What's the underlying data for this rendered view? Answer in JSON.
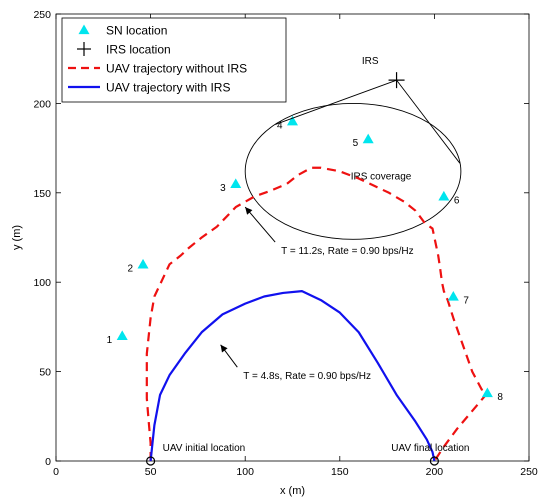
{
  "chart_data": {
    "type": "line",
    "xlabel": "x (m)",
    "ylabel": "y (m)",
    "xlim": [
      0,
      250
    ],
    "ylim": [
      0,
      250
    ],
    "xticks": [
      0,
      50,
      100,
      150,
      200,
      250
    ],
    "yticks": [
      0,
      50,
      100,
      150,
      200,
      250
    ],
    "grid": false,
    "legend_position": "top-left",
    "legend": [
      {
        "label": "SN location",
        "marker": "triangle",
        "color": "#00e5ee"
      },
      {
        "label": "IRS location",
        "marker": "plus",
        "color": "#000000"
      },
      {
        "label": "UAV trajectory without IRS",
        "line": "dashed",
        "color": "#ee1111"
      },
      {
        "label": "UAV trajectory with IRS",
        "line": "solid",
        "color": "#1111ee"
      }
    ],
    "sn_locations": [
      {
        "label": "1",
        "x": 35,
        "y": 70
      },
      {
        "label": "2",
        "x": 46,
        "y": 110
      },
      {
        "label": "3",
        "x": 95,
        "y": 155
      },
      {
        "label": "4",
        "x": 125,
        "y": 190
      },
      {
        "label": "5",
        "x": 165,
        "y": 180
      },
      {
        "label": "6",
        "x": 205,
        "y": 148
      },
      {
        "label": "7",
        "x": 210,
        "y": 92
      },
      {
        "label": "8",
        "x": 228,
        "y": 38
      }
    ],
    "irs_location": {
      "x": 180,
      "y": 213
    },
    "irs_label": "IRS",
    "coverage": {
      "label": "IRS coverage",
      "cx": 157,
      "cy": 162,
      "rx": 57,
      "ry": 38
    },
    "series": [
      {
        "name": "UAV trajectory without IRS",
        "x": [
          50,
          50,
          49,
          48,
          48,
          50,
          52,
          56,
          60,
          66,
          70,
          77,
          85,
          95,
          105,
          113,
          122,
          128,
          135,
          140,
          150,
          160,
          168,
          176,
          184,
          190,
          195,
          199,
          200,
          202,
          203,
          204,
          205,
          207,
          210,
          215,
          220,
          225,
          228,
          220,
          212,
          205,
          200
        ],
        "y": [
          0,
          10,
          22,
          35,
          60,
          80,
          92,
          101,
          110,
          115,
          119,
          125,
          131,
          142,
          148,
          151,
          155,
          160,
          164,
          164,
          162,
          158,
          154,
          150,
          145,
          140,
          133,
          130,
          125,
          115,
          108,
          100,
          95,
          90,
          80,
          65,
          50,
          40,
          38,
          28,
          18,
          8,
          0
        ]
      },
      {
        "name": "UAV trajectory with IRS",
        "x": [
          50,
          51,
          52,
          55,
          60,
          68,
          77,
          88,
          100,
          110,
          120,
          130,
          140,
          150,
          160,
          170,
          180,
          190,
          196,
          199,
          200
        ],
        "y": [
          0,
          10,
          20,
          37,
          48,
          60,
          72,
          82,
          88,
          92,
          94,
          95,
          90,
          83,
          72,
          55,
          37,
          22,
          12,
          5,
          0
        ]
      }
    ],
    "markers": [
      {
        "label": "UAV initial location",
        "x": 50,
        "y": 0
      },
      {
        "label": "UAV final location",
        "x": 200,
        "y": 0
      }
    ],
    "annotations": [
      {
        "text": "T = 11.2s, Rate = 0.90 bps/Hz",
        "x": 119,
        "y": 118,
        "arrow_to": [
          100,
          142
        ]
      },
      {
        "text": "T = 4.8s, Rate = 0.90 bps/Hz",
        "x": 99,
        "y": 48,
        "arrow_to": [
          87,
          65
        ]
      }
    ]
  }
}
